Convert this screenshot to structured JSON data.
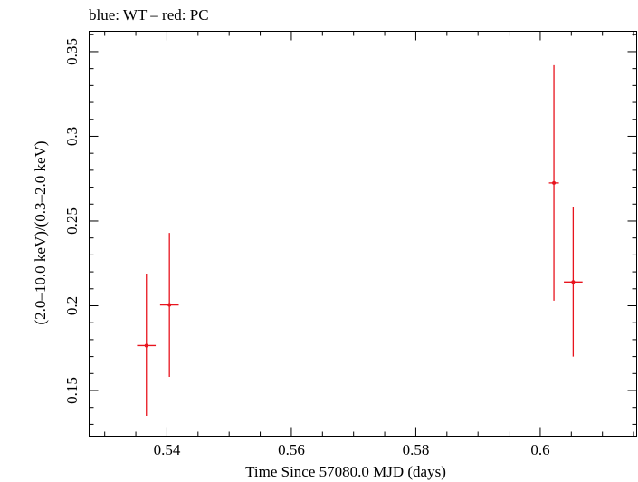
{
  "chart_data": {
    "type": "scatter",
    "title": "blue: WT – red: PC",
    "xlabel": "Time Since 57080.0 MJD (days)",
    "ylabel": "(2.0–10.0 keV)/(0.3–2.0 keV)",
    "xlim": [
      0.5275,
      0.6155
    ],
    "ylim": [
      0.123,
      0.362
    ],
    "x_ticks": [
      0.54,
      0.56,
      0.58,
      0.6
    ],
    "x_tick_labels": [
      "0.54",
      "0.56",
      "0.58",
      "0.6"
    ],
    "y_ticks": [
      0.15,
      0.2,
      0.25,
      0.3,
      0.35
    ],
    "y_tick_labels": [
      "0.15",
      "0.2",
      "0.25",
      "0.3",
      "0.35"
    ],
    "grid": false,
    "series": [
      {
        "name": "PC",
        "color": "#e8141e",
        "points": [
          {
            "x": 0.5367,
            "xerr": 0.0015,
            "y": 0.1765,
            "yerr_low": 0.0415,
            "yerr_high": 0.0425
          },
          {
            "x": 0.5404,
            "xerr": 0.0015,
            "y": 0.2005,
            "yerr_low": 0.0425,
            "yerr_high": 0.0425
          },
          {
            "x": 0.6022,
            "xerr": 0.0008,
            "y": 0.2725,
            "yerr_low": 0.0695,
            "yerr_high": 0.0695
          },
          {
            "x": 0.6053,
            "xerr": 0.0015,
            "y": 0.214,
            "yerr_low": 0.044,
            "yerr_high": 0.0445
          }
        ]
      }
    ]
  }
}
